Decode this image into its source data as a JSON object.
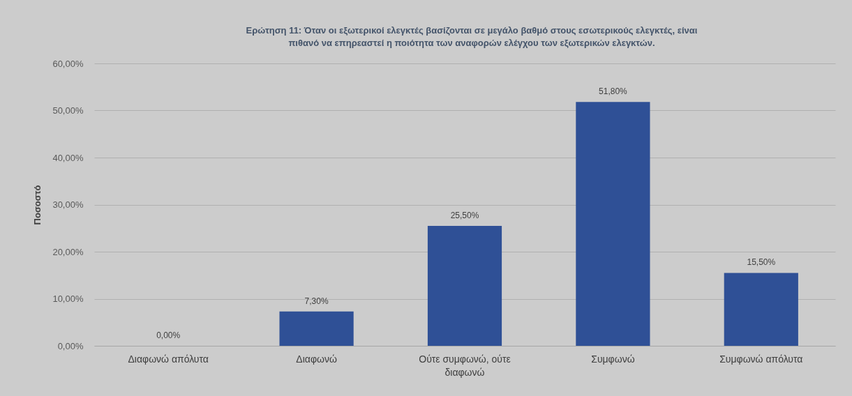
{
  "chart_data": {
    "type": "bar",
    "title": "Ερώτηση 11: Όταν οι εξωτερικοί ελεγκτές βασίζονται σε μεγάλο βαθμό στους εσωτερικούς ελεγκτές, είναι πιθανό να επηρεαστεί η ποιότητα των αναφορών ελέγχου των εξωτερικών ελεγκτών.",
    "ylabel": "Ποσοστό",
    "categories": [
      "Διαφωνώ απόλυτα",
      "Διαφωνώ",
      "Ούτε συμφωνώ, ούτε διαφωνώ",
      "Συμφωνώ",
      "Συμφωνώ απόλυτα"
    ],
    "values": [
      0,
      7.3,
      25.5,
      51.8,
      15.5
    ],
    "value_labels": [
      "0,00%",
      "7,30%",
      "25,50%",
      "51,80%",
      "15,50%"
    ],
    "color": "#2f5096",
    "ylim": [
      0,
      60
    ],
    "yticks": [
      {
        "value": 0,
        "label": "0,00%"
      },
      {
        "value": 10,
        "label": "10,00%"
      },
      {
        "value": 20,
        "label": "20,00%"
      },
      {
        "value": 30,
        "label": "30,00%"
      },
      {
        "value": 40,
        "label": "40,00%"
      },
      {
        "value": 50,
        "label": "50,00%"
      },
      {
        "value": 60,
        "label": "60,00%"
      }
    ],
    "grid": "y"
  }
}
